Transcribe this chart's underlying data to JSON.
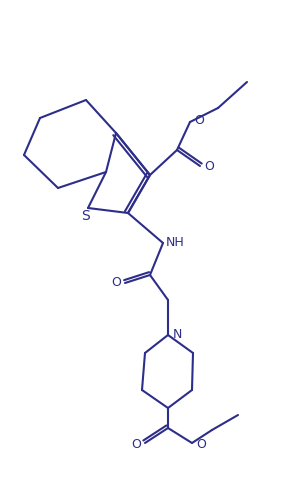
{
  "line_color": "#2d2d8a",
  "line_width": 1.5,
  "figsize": [
    2.82,
    4.93
  ],
  "dpi": 100,
  "atoms": {
    "S_label": "S",
    "NH_label": "NH",
    "N_label": "N",
    "O_labels": [
      "O",
      "O",
      "O",
      "O",
      "O"
    ]
  }
}
